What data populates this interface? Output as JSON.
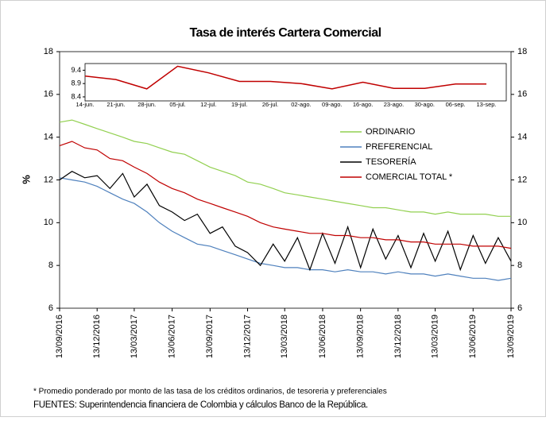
{
  "chart_data": [
    {
      "type": "line",
      "title": "Tasa de interés Cartera Comercial",
      "ylabel": "%",
      "x": [
        "13/09/2016",
        "13/10/2016",
        "13/11/2016",
        "13/12/2016",
        "13/01/2017",
        "13/02/2017",
        "13/03/2017",
        "13/04/2017",
        "13/05/2017",
        "13/06/2017",
        "13/07/2017",
        "13/08/2017",
        "13/09/2017",
        "13/10/2017",
        "13/11/2017",
        "13/12/2017",
        "13/01/2018",
        "13/02/2018",
        "13/03/2018",
        "13/04/2018",
        "13/05/2018",
        "13/06/2018",
        "13/07/2018",
        "13/08/2018",
        "13/09/2018",
        "13/10/2018",
        "13/11/2018",
        "13/12/2018",
        "13/01/2019",
        "13/02/2019",
        "13/03/2019",
        "13/04/2019",
        "13/05/2019",
        "13/06/2019",
        "13/07/2019",
        "13/08/2019",
        "13/09/2019"
      ],
      "xlim": [
        "13/09/2016",
        "13/09/2019"
      ],
      "xticks": [
        "13/09/2016",
        "13/12/2016",
        "13/03/2017",
        "13/06/2017",
        "13/09/2017",
        "13/12/2017",
        "13/03/2018",
        "13/06/2018",
        "13/09/2018",
        "13/12/2018",
        "13/03/2019",
        "13/06/2019",
        "13/09/2019"
      ],
      "ylim": [
        6,
        18
      ],
      "yticks": [
        6,
        8,
        10,
        12,
        14,
        16,
        18
      ],
      "series": [
        {
          "name": "ORDINARIO",
          "color": "#92d050",
          "values": [
            14.7,
            14.8,
            14.6,
            14.4,
            14.2,
            14.0,
            13.8,
            13.7,
            13.5,
            13.3,
            13.2,
            12.9,
            12.6,
            12.4,
            12.2,
            11.9,
            11.8,
            11.6,
            11.4,
            11.3,
            11.2,
            11.1,
            11.0,
            10.9,
            10.8,
            10.7,
            10.7,
            10.6,
            10.5,
            10.5,
            10.4,
            10.5,
            10.4,
            10.4,
            10.4,
            10.3,
            10.3
          ]
        },
        {
          "name": "PREFERENCIAL",
          "color": "#4f81bd",
          "values": [
            12.1,
            12.0,
            11.9,
            11.7,
            11.4,
            11.1,
            10.9,
            10.5,
            10.0,
            9.6,
            9.3,
            9.0,
            8.9,
            8.7,
            8.5,
            8.3,
            8.1,
            8.0,
            7.9,
            7.9,
            7.8,
            7.8,
            7.7,
            7.8,
            7.7,
            7.7,
            7.6,
            7.7,
            7.6,
            7.6,
            7.5,
            7.6,
            7.5,
            7.4,
            7.4,
            7.3,
            7.4
          ]
        },
        {
          "name": "TESORERÍA",
          "color": "#000000",
          "values": [
            12.0,
            12.4,
            12.1,
            12.2,
            11.6,
            12.3,
            11.2,
            11.8,
            10.8,
            10.5,
            10.1,
            10.4,
            9.5,
            9.8,
            8.9,
            8.6,
            8.0,
            9.0,
            8.2,
            9.3,
            7.8,
            9.5,
            8.1,
            9.8,
            7.9,
            9.7,
            8.3,
            9.4,
            7.9,
            9.5,
            8.2,
            9.6,
            7.8,
            9.4,
            8.1,
            9.3,
            8.2
          ]
        },
        {
          "name": "COMERCIAL TOTAL *",
          "color": "#c00000",
          "values": [
            13.6,
            13.8,
            13.5,
            13.4,
            13.0,
            12.9,
            12.6,
            12.3,
            11.9,
            11.6,
            11.4,
            11.1,
            10.9,
            10.7,
            10.5,
            10.3,
            10.0,
            9.8,
            9.7,
            9.6,
            9.5,
            9.5,
            9.4,
            9.4,
            9.3,
            9.3,
            9.2,
            9.2,
            9.1,
            9.1,
            9.0,
            9.0,
            9.0,
            8.9,
            8.9,
            8.9,
            8.8
          ]
        }
      ],
      "footnote": "* Promedio ponderado por monto de las tasa de los créditos ordinarios, de tesoreria y preferenciales",
      "source": "FUENTES:   Superintendencia financiera de Colombia  y cálculos Banco de la República."
    },
    {
      "type": "line",
      "categories": [
        "14-jun.",
        "21-jun.",
        "28-jun.",
        "05-jul.",
        "12-jul.",
        "19-jul.",
        "26-jul.",
        "02-ago.",
        "09-ago.",
        "16-ago.",
        "23-ago.",
        "30-ago.",
        "06-sep.",
        "13-sep."
      ],
      "values": [
        9.18,
        9.05,
        8.7,
        9.55,
        9.3,
        8.98,
        8.98,
        8.9,
        8.7,
        8.95,
        8.72,
        8.72,
        8.88,
        8.88
      ],
      "color": "#c00000",
      "ylim": [
        8.25,
        9.65
      ],
      "yticks": [
        8.4,
        8.9,
        9.4
      ]
    }
  ]
}
